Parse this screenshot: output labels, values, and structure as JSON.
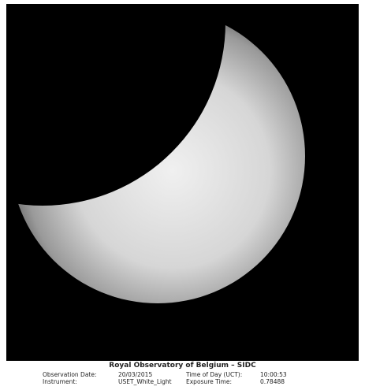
{
  "caption": {
    "title": "Royal Observatory of Belgium – SIDC",
    "rows": [
      [
        "Observation Date:",
        "20/03/2015",
        "Time of Day (UCT):",
        "10:00:53"
      ],
      [
        "Instrument:",
        "USET_White_Light",
        "Exposure Time:",
        "0.78488"
      ]
    ]
  }
}
